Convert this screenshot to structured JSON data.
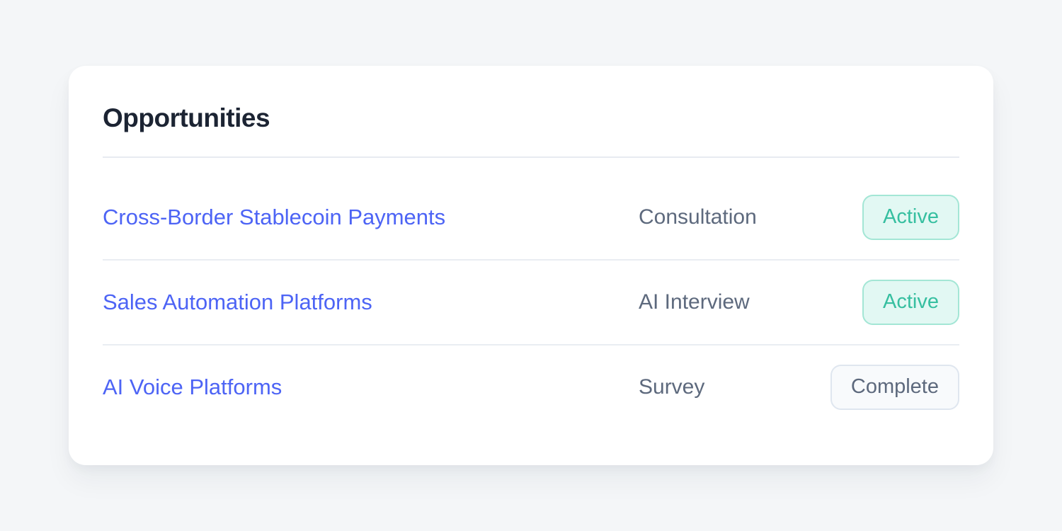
{
  "page": {
    "background_color": "#f4f6f8"
  },
  "card": {
    "title": "Opportunities",
    "rows": [
      {
        "name": "Cross-Border Stablecoin Payments",
        "type": "Consultation",
        "status": "Active",
        "status_variant": "active"
      },
      {
        "name": "Sales Automation Platforms",
        "type": "AI Interview",
        "status": "Active",
        "status_variant": "active"
      },
      {
        "name": "AI Voice Platforms",
        "type": "Survey",
        "status": "Complete",
        "status_variant": "complete"
      }
    ],
    "colors": {
      "title_text": "#1c2433",
      "link_text": "#4d64f5",
      "type_text": "#5d697d",
      "active_badge_bg": "#e2f8f3",
      "active_badge_border": "#a3e6d5",
      "active_badge_text": "#36bfa0",
      "complete_badge_bg": "#f8fafc",
      "complete_badge_border": "#dfe6ef",
      "complete_badge_text": "#5d697d",
      "divider": "#e9edf2"
    }
  }
}
